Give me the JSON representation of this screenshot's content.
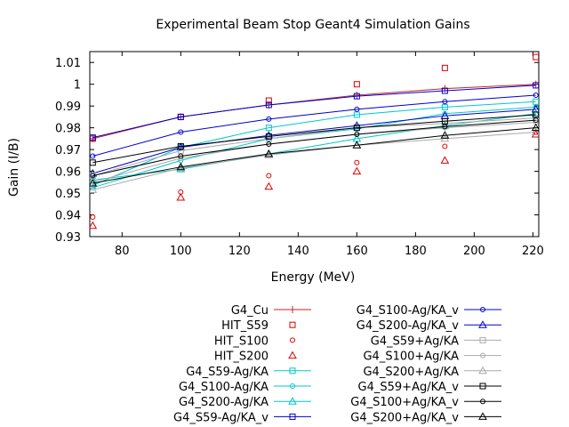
{
  "chart_data": {
    "type": "line",
    "title": "Experimental Beam Stop Geant4 Simulation Gains",
    "xlabel": "Energy (MeV)",
    "ylabel": "Gain (I/B)",
    "xlim": [
      69,
      222
    ],
    "ylim": [
      0.93,
      1.015
    ],
    "xticks": [
      80,
      100,
      120,
      140,
      160,
      180,
      200,
      220
    ],
    "yticks": [
      0.93,
      0.94,
      0.95,
      0.96,
      0.97,
      0.98,
      0.99,
      1,
      1.01
    ],
    "grid": false,
    "legend_position": "bottom",
    "series": [
      {
        "name": "G4_Cu",
        "color": "#cc2222",
        "marker": "plus",
        "line": true,
        "x": [
          70,
          100,
          130,
          160,
          190,
          221
        ],
        "y": [
          0.975,
          0.985,
          0.9905,
          0.995,
          0.998,
          1.0
        ]
      },
      {
        "name": "HIT_S59",
        "color": "#dd0000",
        "marker": "square",
        "line": false,
        "x": [
          70,
          100,
          130,
          160,
          190,
          221
        ],
        "y": [
          0.975,
          0.985,
          0.9925,
          1.0,
          1.0075,
          1.0125
        ]
      },
      {
        "name": "HIT_S100",
        "color": "#dd0000",
        "marker": "circle",
        "line": false,
        "x": [
          70,
          100,
          130,
          160,
          190,
          221
        ],
        "y": [
          0.939,
          0.9505,
          0.958,
          0.964,
          0.9715,
          0.978
        ]
      },
      {
        "name": "HIT_S200",
        "color": "#dd0000",
        "marker": "triangle",
        "line": false,
        "x": [
          70,
          100,
          130,
          160,
          190,
          221
        ],
        "y": [
          0.935,
          0.948,
          0.953,
          0.96,
          0.965,
          0.977
        ]
      },
      {
        "name": "G4_S59-Ag/KA",
        "color": "#00c8c8",
        "marker": "square",
        "line": true,
        "x": [
          70,
          100,
          130,
          160,
          190,
          221
        ],
        "y": [
          0.9535,
          0.971,
          0.98,
          0.986,
          0.9895,
          0.992
        ]
      },
      {
        "name": "G4_S100-Ag/KA",
        "color": "#00c8c8",
        "marker": "circle",
        "line": true,
        "x": [
          70,
          100,
          130,
          160,
          190,
          221
        ],
        "y": [
          0.9525,
          0.965,
          0.975,
          0.9795,
          0.9865,
          0.9895
        ]
      },
      {
        "name": "G4_S200-Ag/KA",
        "color": "#00c8c8",
        "marker": "triangle",
        "line": true,
        "x": [
          70,
          100,
          130,
          160,
          190,
          221
        ],
        "y": [
          0.956,
          0.961,
          0.968,
          0.975,
          0.981,
          0.9865
        ]
      },
      {
        "name": "G4_S59-Ag/KA_v",
        "color": "#0000cc",
        "marker": "square",
        "line": true,
        "x": [
          70,
          100,
          130,
          160,
          190,
          221
        ],
        "y": [
          0.9755,
          0.985,
          0.9905,
          0.9945,
          0.997,
          0.9995
        ]
      },
      {
        "name": "G4_S100-Ag/KA_v",
        "color": "#0000cc",
        "marker": "circle",
        "line": true,
        "x": [
          70,
          100,
          130,
          160,
          190,
          221
        ],
        "y": [
          0.967,
          0.978,
          0.984,
          0.9885,
          0.992,
          0.995
        ]
      },
      {
        "name": "G4_S200-Ag/KA_v",
        "color": "#0000cc",
        "marker": "triangle",
        "line": true,
        "x": [
          70,
          100,
          130,
          160,
          190,
          221
        ],
        "y": [
          0.959,
          0.971,
          0.9765,
          0.981,
          0.9855,
          0.9885
        ]
      },
      {
        "name": "G4_S59+Ag/KA",
        "color": "#aaaaaa",
        "marker": "square",
        "line": true,
        "x": [
          70,
          100,
          130,
          160,
          190,
          221
        ],
        "y": [
          0.958,
          0.9695,
          0.975,
          0.98,
          0.982,
          0.9845
        ]
      },
      {
        "name": "G4_S100+Ag/KA",
        "color": "#aaaaaa",
        "marker": "circle",
        "line": true,
        "x": [
          70,
          100,
          130,
          160,
          190,
          221
        ],
        "y": [
          0.955,
          0.966,
          0.9725,
          0.977,
          0.98,
          0.9825
        ]
      },
      {
        "name": "G4_S200+Ag/KA",
        "color": "#aaaaaa",
        "marker": "triangle",
        "line": true,
        "x": [
          70,
          100,
          130,
          160,
          190,
          221
        ],
        "y": [
          0.9515,
          0.9615,
          0.9675,
          0.972,
          0.975,
          0.978
        ]
      },
      {
        "name": "G4_S59+Ag/KA_v",
        "color": "#000000",
        "marker": "square",
        "line": true,
        "x": [
          70,
          100,
          130,
          160,
          190,
          221
        ],
        "y": [
          0.964,
          0.9715,
          0.976,
          0.98,
          0.983,
          0.986
        ]
      },
      {
        "name": "G4_S100+Ag/KA_v",
        "color": "#000000",
        "marker": "circle",
        "line": true,
        "x": [
          70,
          100,
          130,
          160,
          190,
          221
        ],
        "y": [
          0.958,
          0.967,
          0.9725,
          0.977,
          0.9805,
          0.9835
        ]
      },
      {
        "name": "G4_S200+Ag/KA_v",
        "color": "#000000",
        "marker": "triangle",
        "line": true,
        "x": [
          70,
          100,
          130,
          160,
          190,
          221
        ],
        "y": [
          0.9545,
          0.962,
          0.968,
          0.972,
          0.9765,
          0.98
        ]
      }
    ]
  }
}
